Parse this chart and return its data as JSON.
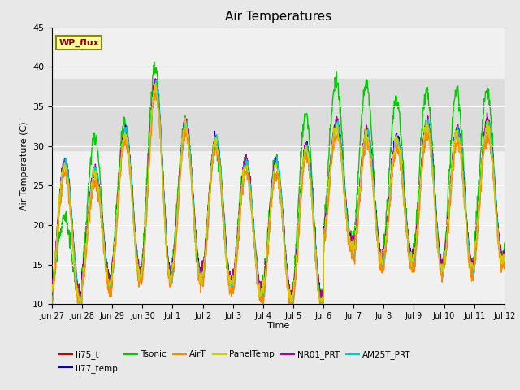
{
  "title": "Air Temperatures",
  "xlabel": "Time",
  "ylabel": "Air Temperature (C)",
  "ylim": [
    10,
    45
  ],
  "yticks": [
    10,
    15,
    20,
    25,
    30,
    35,
    40,
    45
  ],
  "date_labels": [
    "Jun 27",
    "Jun 28",
    "Jun 29",
    "Jun 30",
    "Jul 1",
    "Jul 2",
    "Jul 3",
    "Jul 4",
    "Jul 5",
    "Jul 6",
    "Jul 7",
    "Jul 8",
    "Jul 9",
    "Jul 10",
    "Jul 11",
    "Jul 12"
  ],
  "shaded_band": [
    29.5,
    38.5
  ],
  "annotation_text": "WP_flux",
  "annotation_color": "#8B0000",
  "annotation_bg": "#FFFF99",
  "annotation_border": "#8B8B00",
  "series_colors": {
    "li75_t": "#CC0000",
    "li77_temp": "#0000CC",
    "Tsonic": "#00CC00",
    "AirT": "#FF8800",
    "PanelTemp": "#CCCC00",
    "NR01_PRT": "#AA00AA",
    "AM25T_PRT": "#00CCCC"
  },
  "series_labels": [
    "li75_t",
    "li77_temp",
    "Tsonic",
    "AirT",
    "PanelTemp",
    "NR01_PRT",
    "AM25T_PRT"
  ],
  "bg_color": "#E8E8E8",
  "plot_bg": "#F0F0F0",
  "day_peaks": [
    28,
    27,
    32,
    38,
    33,
    31,
    28,
    28,
    30,
    33,
    32,
    31,
    33,
    32,
    33
  ],
  "day_peaks_sonic": [
    21,
    31,
    33,
    40,
    33,
    30,
    28,
    28,
    34,
    38,
    38,
    36,
    37,
    37,
    37
  ],
  "day_mins": [
    11,
    13,
    14,
    14,
    14,
    13,
    12,
    11,
    11,
    18,
    16,
    16,
    15,
    15,
    16
  ]
}
